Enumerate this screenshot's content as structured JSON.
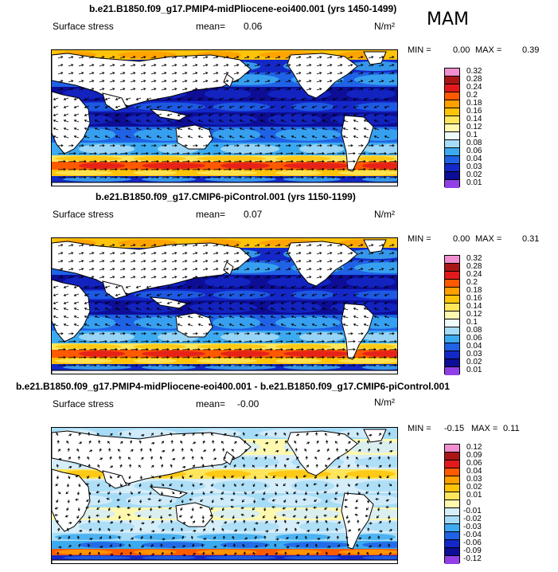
{
  "season": "MAM",
  "panels": [
    {
      "title": "b.e21.B1850.f09_g17.PMIP4-midPliocene-eoi400.001 (yrs 1450-1499)",
      "variable": "Surface stress",
      "mean_label": "mean=",
      "mean_value": "0.06",
      "units": "N/m²",
      "min_label": "MIN =",
      "min_value": "0.00",
      "max_label": "MAX =",
      "max_value": "0.39",
      "levels": [
        "0.32",
        "0.28",
        "0.24",
        "0.2",
        "0.18",
        "0.16",
        "0.14",
        "0.12",
        "0.1",
        "0.08",
        "0.06",
        "0.04",
        "0.03",
        "0.02",
        "0.01"
      ],
      "colors": [
        "#f08fd0",
        "#a81616",
        "#e31a1c",
        "#ff5a00",
        "#ff9f00",
        "#ffc30a",
        "#ffe65c",
        "#fff9b0",
        "#eefbfb",
        "#a7dcf6",
        "#3caaf0",
        "#1f62e6",
        "#1428c8",
        "#0d0d96",
        "#9140e6"
      ]
    },
    {
      "title": "b.e21.B1850.f09_g17.CMIP6-piControl.001 (yrs 1150-1199)",
      "variable": "Surface stress",
      "mean_label": "mean=",
      "mean_value": "0.07",
      "units": "N/m²",
      "min_label": "MIN =",
      "min_value": "0.00",
      "max_label": "MAX =",
      "max_value": "0.31",
      "levels": [
        "0.32",
        "0.28",
        "0.24",
        "0.2",
        "0.18",
        "0.16",
        "0.14",
        "0.12",
        "0.1",
        "0.08",
        "0.06",
        "0.04",
        "0.03",
        "0.02",
        "0.01"
      ],
      "colors": [
        "#f08fd0",
        "#a81616",
        "#e31a1c",
        "#ff5a00",
        "#ff9f00",
        "#ffc30a",
        "#ffe65c",
        "#fff9b0",
        "#eefbfb",
        "#a7dcf6",
        "#3caaf0",
        "#1f62e6",
        "#1428c8",
        "#0d0d96",
        "#9140e6"
      ]
    },
    {
      "title": "b.e21.B1850.f09_g17.PMIP4-midPliocene-eoi400.001 - b.e21.B1850.f09_g17.CMIP6-piControl.001",
      "variable": "Surface stress",
      "mean_label": "mean=",
      "mean_value": "-0.00",
      "units": "N/m²",
      "min_label": "MIN =",
      "min_value": "-0.15",
      "max_label": "MAX =",
      "max_value": "0.11",
      "levels": [
        "0.12",
        "0.09",
        "0.06",
        "0.04",
        "0.03",
        "0.02",
        "0.01",
        "0",
        "-0.01",
        "-0.02",
        "-0.03",
        "-0.04",
        "-0.06",
        "-0.09",
        "-0.12"
      ],
      "colors": [
        "#f08fd0",
        "#a81616",
        "#e31a1c",
        "#ff5a00",
        "#ff9f00",
        "#ffc30a",
        "#ffe65c",
        "#fff9b0",
        "#d6edfa",
        "#a7dcf6",
        "#3caaf0",
        "#1f62e6",
        "#1428c8",
        "#0d0d96",
        "#9140e6"
      ]
    }
  ]
}
